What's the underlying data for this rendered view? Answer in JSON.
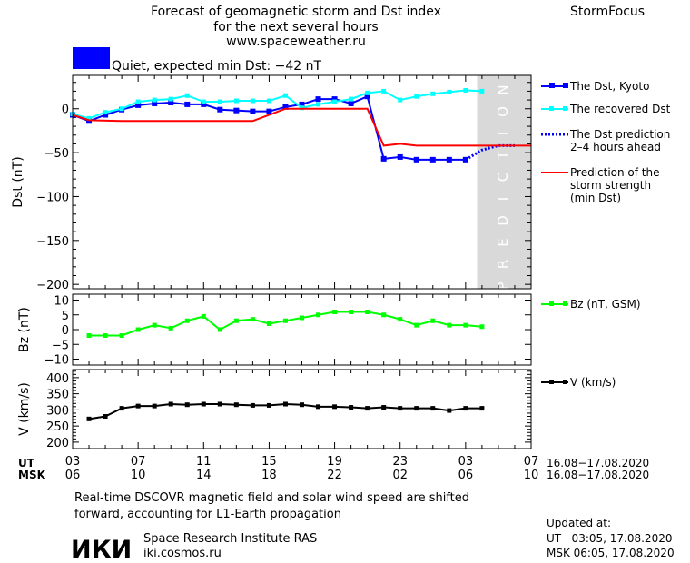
{
  "header": {
    "title_lines": [
      "Forecast of geomagnetic storm and Dst index",
      "for the next several hours",
      "www.spaceweather.ru"
    ],
    "brand": "StormFocus",
    "status_text": "Quiet, expected min Dst: −42 nT",
    "status_color": "#0000ff"
  },
  "colors": {
    "dst_kyoto": "#0000ff",
    "dst_recovered": "#00ffff",
    "dst_prediction": "#0000ff",
    "storm_strength": "#ff0000",
    "bz": "#00ff00",
    "v": "#000000",
    "prediction_band": "#d9d9d9"
  },
  "chart_data": [
    {
      "type": "line",
      "ylabel": "Dst (nT)",
      "ylim": [
        -205,
        38
      ],
      "yticks": [
        0,
        -50,
        -100,
        -150,
        -200
      ],
      "ytick_labels": [
        "0",
        "−50",
        "−100",
        "−150",
        "−200"
      ],
      "xlim": [
        0,
        28
      ],
      "grid": false,
      "prediction_band": {
        "x": [
          24.7,
          28
        ],
        "label": "PREDICTION"
      },
      "series": [
        {
          "name": "The Dst, Kyoto",
          "color": "#0000ff",
          "style": "solid-square",
          "x": [
            0,
            1,
            2,
            3,
            4,
            5,
            6,
            7,
            8,
            9,
            10,
            11,
            12,
            13,
            14,
            15,
            16,
            17,
            18,
            19,
            20,
            21,
            22,
            23,
            24
          ],
          "y": [
            -7,
            -14,
            -7,
            -1,
            4,
            6,
            7,
            5,
            5,
            -1,
            -2,
            -3,
            -3,
            2,
            5,
            11,
            11,
            6,
            14,
            -57,
            -55,
            -58,
            -58,
            -58,
            -58
          ]
        },
        {
          "name": "The recovered Dst",
          "color": "#00ffff",
          "style": "solid-square",
          "x": [
            0,
            1,
            2,
            3,
            4,
            5,
            6,
            7,
            8,
            9,
            10,
            11,
            12,
            13,
            14,
            15,
            16,
            17,
            18,
            19,
            20,
            21,
            22,
            23,
            24,
            25
          ],
          "y": [
            -6,
            -11,
            -4,
            0,
            8,
            10,
            11,
            15,
            8,
            8,
            9,
            9,
            9,
            15,
            1,
            5,
            8,
            11,
            18,
            20,
            10,
            14,
            17,
            19,
            21,
            20
          ]
        },
        {
          "name": "The Dst prediction\n2–4 hours ahead",
          "color": "#0000ff",
          "style": "dotted",
          "x": [
            24,
            25,
            26,
            27
          ],
          "y": [
            -58,
            -47,
            -42,
            -42
          ]
        },
        {
          "name": "Prediction of the\nstorm strength\n(min Dst)",
          "color": "#ff0000",
          "style": "solid",
          "x": [
            0,
            1,
            3,
            6,
            9,
            11,
            13,
            14,
            16,
            18,
            19,
            20,
            21,
            24,
            27,
            28
          ],
          "y": [
            -7,
            -13,
            -14,
            -14,
            -14,
            -14,
            0,
            0,
            0,
            0,
            -42,
            -40,
            -42,
            -42,
            -42,
            -42
          ]
        }
      ]
    },
    {
      "type": "line",
      "ylabel": "Bz (nT)",
      "ylim": [
        -12,
        12
      ],
      "yticks": [
        10,
        5,
        0,
        -5,
        -10
      ],
      "ytick_labels": [
        "10",
        "5",
        "0",
        "−5",
        "−10"
      ],
      "xlim": [
        0,
        28
      ],
      "series": [
        {
          "name": "Bz (nT, GSM)",
          "color": "#00ff00",
          "x": [
            1,
            2,
            3,
            4,
            5,
            6,
            7,
            8,
            9,
            10,
            11,
            12,
            13,
            14,
            15,
            16,
            17,
            18,
            19,
            20,
            21,
            22,
            23,
            24,
            25
          ],
          "y": [
            -2,
            -2,
            -2,
            0,
            1.5,
            0.5,
            3,
            4.5,
            0,
            3,
            3.5,
            2,
            3,
            4,
            5,
            6,
            6,
            6,
            5,
            3.5,
            1.5,
            3,
            1.5,
            1.5,
            1
          ]
        }
      ]
    },
    {
      "type": "line",
      "ylabel": "V (km/s)",
      "ylim": [
        180,
        425
      ],
      "yticks": [
        400,
        350,
        300,
        250,
        200
      ],
      "ytick_labels": [
        "400",
        "350",
        "300",
        "250",
        "200"
      ],
      "xlim": [
        0,
        28
      ],
      "series": [
        {
          "name": "V (km/s)",
          "color": "#000000",
          "x": [
            1,
            2,
            3,
            4,
            5,
            6,
            7,
            8,
            9,
            10,
            11,
            12,
            13,
            14,
            15,
            16,
            17,
            18,
            19,
            20,
            21,
            22,
            23,
            24,
            25
          ],
          "y": [
            272,
            280,
            305,
            312,
            312,
            318,
            316,
            318,
            318,
            316,
            314,
            314,
            318,
            316,
            310,
            310,
            308,
            305,
            308,
            305,
            305,
            305,
            298,
            305,
            305
          ]
        }
      ]
    }
  ],
  "x_axis": {
    "ut_label": "UT",
    "msk_label": "MSK",
    "positions": [
      0,
      4,
      8,
      12,
      16,
      20,
      24,
      28
    ],
    "ut_ticks": [
      "03",
      "07",
      "11",
      "15",
      "19",
      "23",
      "03",
      "07"
    ],
    "msk_ticks": [
      "06",
      "10",
      "14",
      "18",
      "22",
      "02",
      "06",
      "10"
    ],
    "ut_range": "16.08−17.08.2020",
    "msk_range": "16.08−17.08.2020"
  },
  "footer": {
    "note_lines": [
      "Real-time DSCOVR magnetic field and solar wind speed are shifted",
      "forward, accounting for L1-Earth propagation"
    ],
    "logo_text": "ИКИ",
    "institute": "Space Research Institute RAS",
    "website": "iki.cosmos.ru",
    "updated_label": "Updated at:",
    "updated_ut": "UT   03:05, 17.08.2020",
    "updated_msk": "MSK 06:05, 17.08.2020"
  }
}
